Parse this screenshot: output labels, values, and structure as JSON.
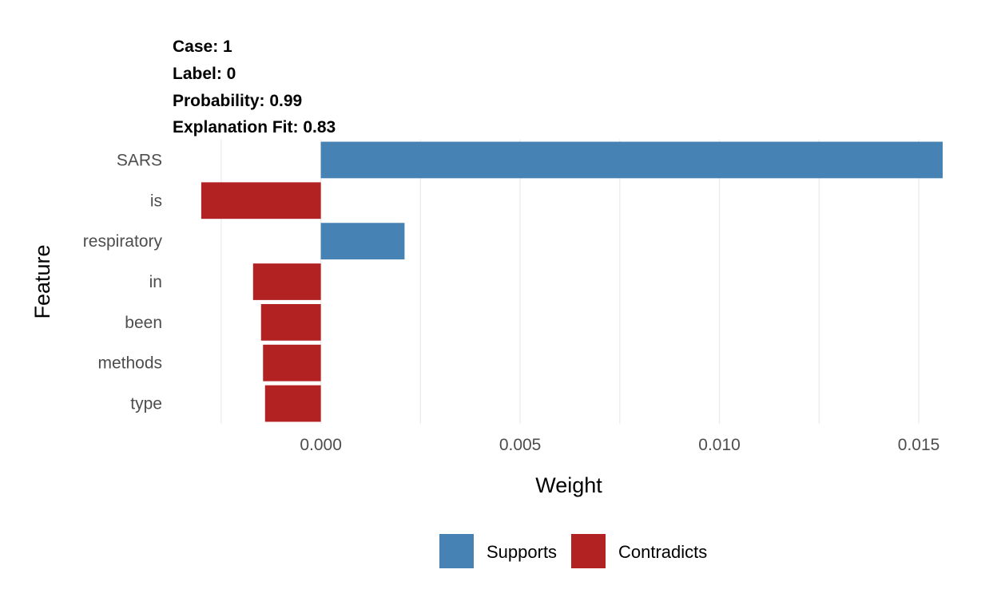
{
  "header": {
    "case": "Case: 1",
    "label": "Label: 0",
    "probability": "Probability: 0.99",
    "fit": "Explanation Fit: 0.83"
  },
  "chart_data": {
    "type": "bar",
    "orientation": "horizontal",
    "xlabel": "Weight",
    "ylabel": "Feature",
    "xlim": [
      -0.0038,
      0.0158
    ],
    "xticks": [
      0.0,
      0.005,
      0.01,
      0.015
    ],
    "xtick_labels": [
      "0.000",
      "0.005",
      "0.010",
      "0.015"
    ],
    "grid": true,
    "legend": {
      "position": "bottom",
      "items": [
        {
          "label": "Supports",
          "color": "#4682b4"
        },
        {
          "label": "Contradicts",
          "color": "#b22222"
        }
      ]
    },
    "bars": [
      {
        "feature": "SARS",
        "weight": 0.0156,
        "class": "Supports"
      },
      {
        "feature": "is",
        "weight": -0.003,
        "class": "Contradicts"
      },
      {
        "feature": "respiratory",
        "weight": 0.0021,
        "class": "Supports"
      },
      {
        "feature": "in",
        "weight": -0.0017,
        "class": "Contradicts"
      },
      {
        "feature": "been",
        "weight": -0.0015,
        "class": "Contradicts"
      },
      {
        "feature": "methods",
        "weight": -0.00145,
        "class": "Contradicts"
      },
      {
        "feature": "type",
        "weight": -0.0014,
        "class": "Contradicts"
      }
    ]
  }
}
